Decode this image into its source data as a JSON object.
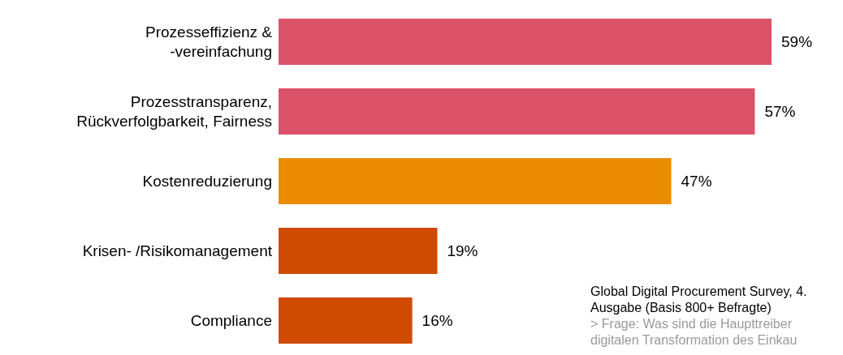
{
  "chart_data": {
    "type": "bar",
    "orientation": "horizontal",
    "categories": [
      "Prozesseffizienz & -vereinfachung",
      "Prozesstransparenz, Rückverfolgbarkeit, Fairness",
      "Kostenreduzierung",
      "Krisen- /Risikomanagement",
      "Compliance"
    ],
    "values": [
      59,
      57,
      47,
      19,
      16
    ],
    "colors": [
      "#dc5269",
      "#dc5269",
      "#eb8c00",
      "#d04a02",
      "#d04a02"
    ],
    "value_labels": [
      "59%",
      "57%",
      "47%",
      "19%",
      "16%"
    ],
    "annotations": [
      "Global Digital Procurement Survey, 4. Ausgabe (Basis 800+ Befragte)",
      "> Frage: Was sind die Haupttreiber digitalen Transformation des Einkau"
    ]
  }
}
